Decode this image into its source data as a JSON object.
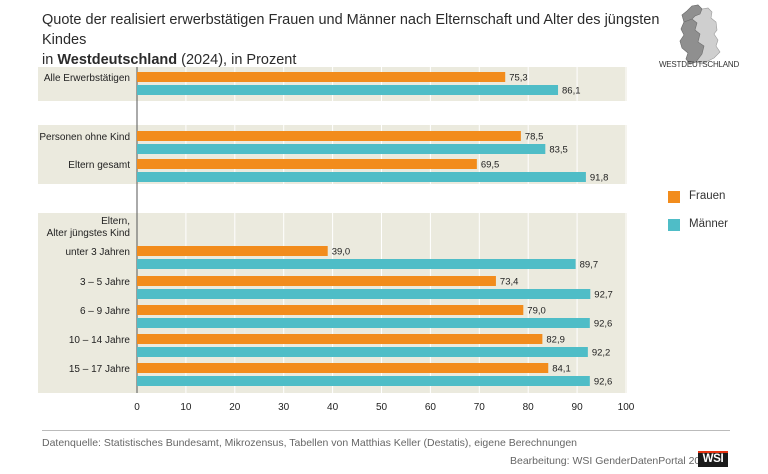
{
  "header": {
    "title_line1": "Quote der realisiert erwerbstätigen Frauen und Männer nach Elternschaft und Alter des jüngsten Kindes",
    "title_line2_prefix": "in ",
    "title_line2_bold": "Westdeutschland",
    "title_line2_suffix": " (2024), in Prozent"
  },
  "map": {
    "label": "WESTDEUTSCHLAND",
    "icon": "germany-map-icon"
  },
  "legend": {
    "items": [
      {
        "label": "Frauen",
        "color": "#f28c1c"
      },
      {
        "label": "Männer",
        "color": "#4fbdc7"
      }
    ]
  },
  "footer": {
    "source": "Datenquelle: Statistisches Bundesamt, Mikrozensus, Tabellen von Matthias Keller (Destatis), eigene Berechnungen",
    "credit": "Bearbeitung: WSI GenderDatenPortal 2026",
    "logo": "WSI"
  },
  "chart_data": {
    "type": "bar",
    "orientation": "horizontal",
    "xlim": [
      0,
      100
    ],
    "xticks": [
      0,
      10,
      20,
      30,
      40,
      50,
      60,
      70,
      80,
      90,
      100
    ],
    "group_header": "Eltern,\nAlter jüngstes Kind",
    "categories": [
      "Alle Erwerbstätigen",
      "Personen ohne Kind",
      "Eltern gesamt",
      "unter 3 Jahren",
      "3 – 5 Jahre",
      "6 – 9 Jahre",
      "10 – 14 Jahre",
      "15 – 17 Jahre"
    ],
    "series": [
      {
        "name": "Frauen",
        "color": "#f28c1c",
        "values": [
          75.3,
          78.5,
          69.5,
          39.0,
          73.4,
          79.0,
          82.9,
          84.1
        ],
        "labels": [
          "75,3",
          "78,5",
          "69,5",
          "39,0",
          "73,4",
          "79,0",
          "82,9",
          "84,1"
        ]
      },
      {
        "name": "Männer",
        "color": "#4fbdc7",
        "values": [
          86.1,
          83.5,
          91.8,
          89.7,
          92.7,
          92.6,
          92.2,
          92.6
        ],
        "labels": [
          "86,1",
          "83,5",
          "91,8",
          "89,7",
          "92,7",
          "92,6",
          "92,2",
          "92,6"
        ]
      }
    ],
    "grid": true,
    "legend_position": "right"
  }
}
